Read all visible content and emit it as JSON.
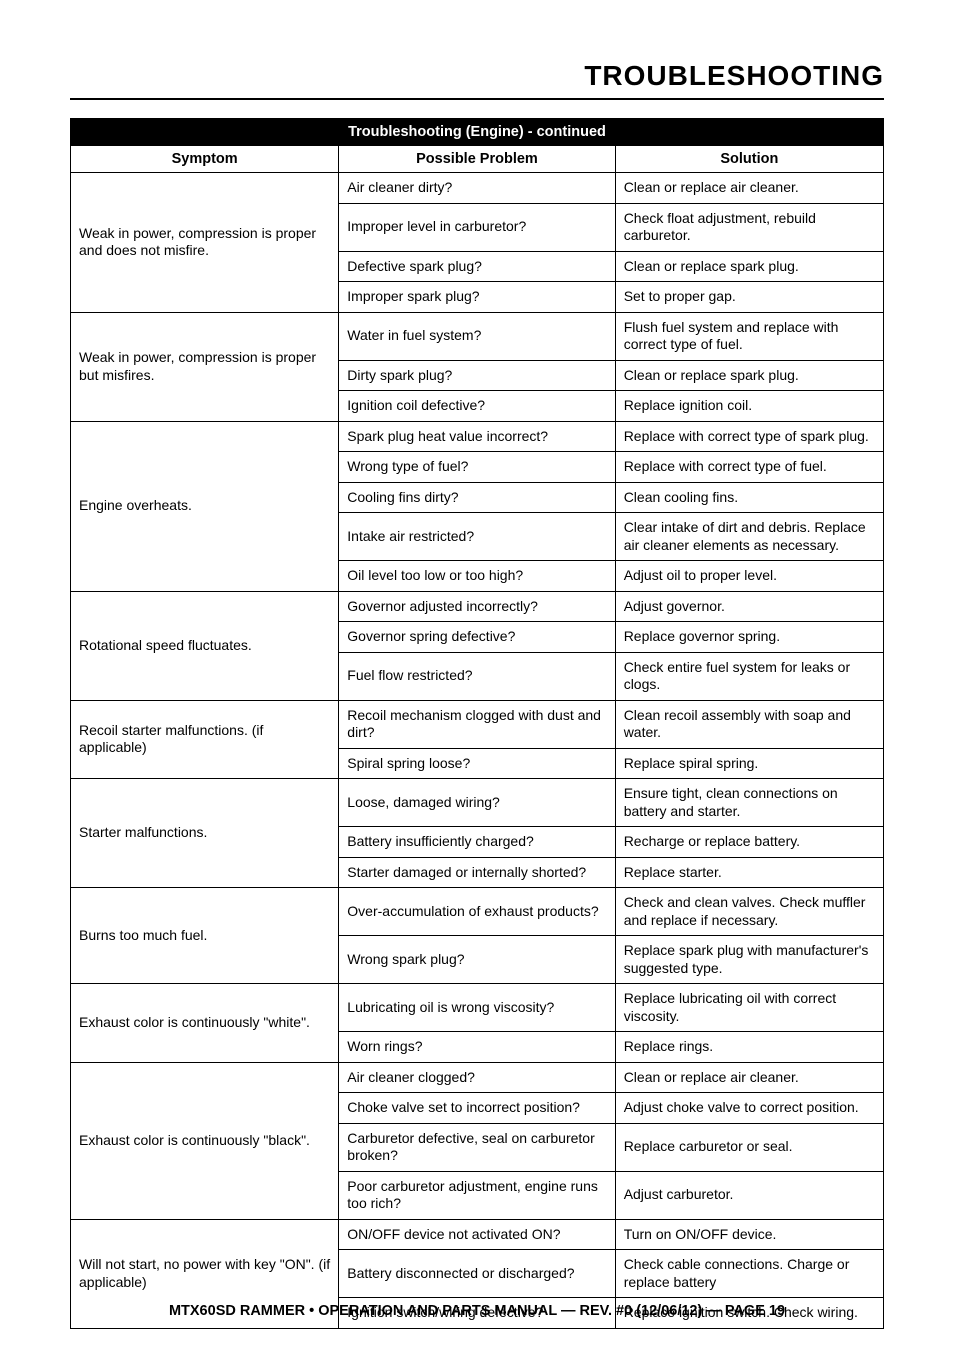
{
  "page": {
    "title": "TROUBLESHOOTING",
    "footer": "MTX60SD RAMMER • OPERATION AND PARTS MANUAL — REV. #0 (12/06/12) — PAGE 19"
  },
  "table": {
    "caption": "Troubleshooting (Engine) - continued",
    "columns": [
      "Symptom",
      "Possible Problem",
      "Solution"
    ],
    "col_widths_pct": [
      33,
      34,
      33
    ],
    "font_size_pt": 14,
    "border_color": "#000000",
    "header_bg": "#000000",
    "header_fg": "#ffffff",
    "groups": [
      {
        "symptom": "Weak in power, compression is proper and does not misfire.",
        "rows": [
          {
            "problem": "Air cleaner dirty?",
            "solution": "Clean or replace air cleaner."
          },
          {
            "problem": "Improper level in carburetor?",
            "solution": "Check float adjustment, rebuild carburetor."
          },
          {
            "problem": "Defective spark plug?",
            "solution": "Clean or replace spark plug."
          },
          {
            "problem": "Improper spark plug?",
            "solution": "Set to proper gap."
          }
        ]
      },
      {
        "symptom": "Weak in power, compression is proper but misfires.",
        "rows": [
          {
            "problem": "Water in fuel system?",
            "solution": "Flush fuel system and replace with correct type of fuel."
          },
          {
            "problem": "Dirty spark plug?",
            "solution": "Clean or replace spark plug."
          },
          {
            "problem": "Ignition coil defective?",
            "solution": "Replace ignition coil."
          }
        ]
      },
      {
        "symptom": "Engine overheats.",
        "rows": [
          {
            "problem": "Spark plug heat value incorrect?",
            "solution": "Replace with correct type of spark plug."
          },
          {
            "problem": "Wrong type of fuel?",
            "solution": "Replace with correct type of fuel."
          },
          {
            "problem": "Cooling fins dirty?",
            "solution": "Clean cooling fins."
          },
          {
            "problem": "Intake air restricted?",
            "solution": "Clear intake of dirt and debris. Replace air cleaner elements as necessary."
          },
          {
            "problem": "Oil level too low or too high?",
            "solution": "Adjust oil to proper level."
          }
        ]
      },
      {
        "symptom": "Rotational speed fluctuates.",
        "rows": [
          {
            "problem": "Governor adjusted incorrectly?",
            "solution": "Adjust governor."
          },
          {
            "problem": "Governor spring defective?",
            "solution": "Replace governor spring."
          },
          {
            "problem": "Fuel flow restricted?",
            "solution": "Check entire fuel system for leaks or clogs."
          }
        ]
      },
      {
        "symptom": "Recoil starter malfunctions. (if applicable)",
        "rows": [
          {
            "problem": "Recoil mechanism clogged with dust and dirt?",
            "solution": "Clean recoil assembly with soap and water."
          },
          {
            "problem": "Spiral spring loose?",
            "solution": "Replace spiral spring."
          }
        ]
      },
      {
        "symptom": "Starter malfunctions.",
        "rows": [
          {
            "problem": "Loose, damaged wiring?",
            "solution": "Ensure tight, clean connections on battery and starter."
          },
          {
            "problem": "Battery insufficiently charged?",
            "solution": "Recharge or replace battery."
          },
          {
            "problem": "Starter damaged or internally shorted?",
            "solution": "Replace starter."
          }
        ]
      },
      {
        "symptom": "Burns too much fuel.",
        "rows": [
          {
            "problem": "Over-accumulation of exhaust products?",
            "solution": "Check and clean valves. Check muffler and replace if necessary."
          },
          {
            "problem": "Wrong spark plug?",
            "solution": "Replace spark plug with manufacturer's suggested type."
          }
        ]
      },
      {
        "symptom": "Exhaust color is continuously \"white\".",
        "rows": [
          {
            "problem": "Lubricating oil is wrong viscosity?",
            "solution": "Replace lubricating oil with correct viscosity."
          },
          {
            "problem": "Worn rings?",
            "solution": "Replace rings."
          }
        ]
      },
      {
        "symptom": "Exhaust color is continuously \"black\".",
        "rows": [
          {
            "problem": "Air cleaner clogged?",
            "solution": "Clean or replace air cleaner."
          },
          {
            "problem": "Choke valve set to incorrect position?",
            "solution": "Adjust choke valve to correct position."
          },
          {
            "problem": "Carburetor defective, seal on carburetor broken?",
            "solution": "Replace carburetor or seal."
          },
          {
            "problem": "Poor carburetor adjustment, engine runs too rich?",
            "solution": "Adjust carburetor."
          }
        ]
      },
      {
        "symptom": "Will not start, no power with key \"ON\". (if applicable)",
        "rows": [
          {
            "problem": "ON/OFF device not activated ON?",
            "solution": "Turn on ON/OFF device."
          },
          {
            "problem": "Battery disconnected or discharged?",
            "solution": "Check cable connections. Charge or replace battery"
          },
          {
            "problem": "Ignition switch/wiring defective?",
            "solution": "Replace ignition switch. Check wiring."
          }
        ]
      }
    ]
  }
}
